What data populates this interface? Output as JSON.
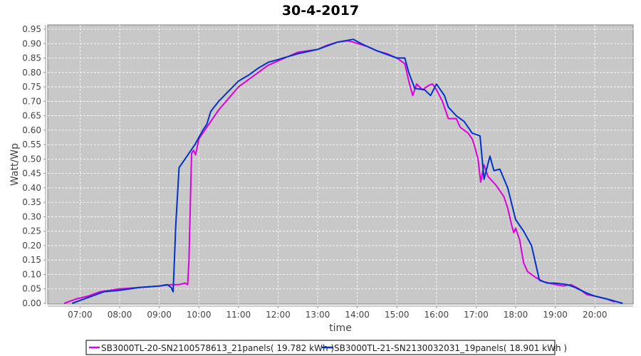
{
  "chart_data": {
    "type": "line",
    "title": "30-4-2017",
    "xlabel": "time",
    "ylabel": "Watt/Wp",
    "xlim": [
      "06:11",
      "20:58"
    ],
    "ylim": [
      0,
      0.96
    ],
    "grid": true,
    "legend_position": "bottom",
    "background": "#c8c8c8",
    "xticks": [
      "07:00",
      "08:00",
      "09:00",
      "10:00",
      "11:00",
      "12:00",
      "13:00",
      "14:00",
      "15:00",
      "16:00",
      "17:00",
      "18:00",
      "19:00",
      "20:00"
    ],
    "yticks": [
      "0.00",
      "0.05",
      "0.10",
      "0.15",
      "0.20",
      "0.25",
      "0.30",
      "0.35",
      "0.40",
      "0.45",
      "0.50",
      "0.55",
      "0.60",
      "0.65",
      "0.70",
      "0.75",
      "0.80",
      "0.85",
      "0.90",
      "0.95"
    ],
    "series": [
      {
        "name": "SB3000TL-20-SN2100578613_21panels( 19.782 kWh )",
        "color": "#dd00dd",
        "points": [
          [
            "06:36",
            0.0
          ],
          [
            "06:54",
            0.015
          ],
          [
            "07:12",
            0.025
          ],
          [
            "07:30",
            0.04
          ],
          [
            "08:00",
            0.05
          ],
          [
            "08:30",
            0.055
          ],
          [
            "09:00",
            0.06
          ],
          [
            "09:18",
            0.065
          ],
          [
            "09:30",
            0.065
          ],
          [
            "09:39",
            0.07
          ],
          [
            "09:43",
            0.065
          ],
          [
            "09:45",
            0.15
          ],
          [
            "09:49",
            0.52
          ],
          [
            "09:52",
            0.53
          ],
          [
            "09:55",
            0.515
          ],
          [
            "10:00",
            0.57
          ],
          [
            "10:15",
            0.62
          ],
          [
            "10:30",
            0.67
          ],
          [
            "10:45",
            0.71
          ],
          [
            "11:00",
            0.75
          ],
          [
            "11:15",
            0.775
          ],
          [
            "11:30",
            0.8
          ],
          [
            "11:45",
            0.825
          ],
          [
            "12:00",
            0.84
          ],
          [
            "12:15",
            0.855
          ],
          [
            "12:30",
            0.87
          ],
          [
            "12:45",
            0.875
          ],
          [
            "13:00",
            0.88
          ],
          [
            "13:15",
            0.895
          ],
          [
            "13:30",
            0.905
          ],
          [
            "13:45",
            0.91
          ],
          [
            "13:54",
            0.905
          ],
          [
            "14:15",
            0.89
          ],
          [
            "14:30",
            0.875
          ],
          [
            "14:45",
            0.865
          ],
          [
            "15:00",
            0.85
          ],
          [
            "15:12",
            0.83
          ],
          [
            "15:18",
            0.77
          ],
          [
            "15:24",
            0.72
          ],
          [
            "15:30",
            0.76
          ],
          [
            "15:39",
            0.74
          ],
          [
            "15:48",
            0.755
          ],
          [
            "15:54",
            0.76
          ],
          [
            "16:00",
            0.74
          ],
          [
            "16:09",
            0.7
          ],
          [
            "16:18",
            0.64
          ],
          [
            "16:30",
            0.64
          ],
          [
            "16:36",
            0.61
          ],
          [
            "16:48",
            0.59
          ],
          [
            "16:54",
            0.57
          ],
          [
            "16:57",
            0.55
          ],
          [
            "17:03",
            0.5
          ],
          [
            "17:07",
            0.42
          ],
          [
            "17:12",
            0.48
          ],
          [
            "17:18",
            0.44
          ],
          [
            "17:30",
            0.41
          ],
          [
            "17:42",
            0.37
          ],
          [
            "17:48",
            0.33
          ],
          [
            "17:54",
            0.27
          ],
          [
            "17:57",
            0.245
          ],
          [
            "18:00",
            0.26
          ],
          [
            "18:06",
            0.22
          ],
          [
            "18:12",
            0.14
          ],
          [
            "18:18",
            0.11
          ],
          [
            "18:30",
            0.09
          ],
          [
            "18:42",
            0.075
          ],
          [
            "19:00",
            0.065
          ],
          [
            "19:12",
            0.06
          ],
          [
            "19:24",
            0.065
          ],
          [
            "19:36",
            0.05
          ],
          [
            "19:48",
            0.03
          ],
          [
            "20:00",
            0.025
          ],
          [
            "20:18",
            0.015
          ],
          [
            "20:30",
            0.005
          ]
        ]
      },
      {
        "name": "SB3000TL-21-SN2130032031_19panels( 18.901 kWh )",
        "color": "#0033cc",
        "points": [
          [
            "06:48",
            0.0
          ],
          [
            "07:00",
            0.01
          ],
          [
            "07:18",
            0.025
          ],
          [
            "07:36",
            0.04
          ],
          [
            "08:00",
            0.045
          ],
          [
            "08:30",
            0.055
          ],
          [
            "09:00",
            0.06
          ],
          [
            "09:12",
            0.065
          ],
          [
            "09:18",
            0.055
          ],
          [
            "09:21",
            0.04
          ],
          [
            "09:25",
            0.27
          ],
          [
            "09:30",
            0.47
          ],
          [
            "09:36",
            0.49
          ],
          [
            "09:45",
            0.52
          ],
          [
            "09:54",
            0.55
          ],
          [
            "10:06",
            0.6
          ],
          [
            "10:12",
            0.62
          ],
          [
            "10:18",
            0.665
          ],
          [
            "10:30",
            0.7
          ],
          [
            "10:45",
            0.735
          ],
          [
            "11:00",
            0.77
          ],
          [
            "11:15",
            0.79
          ],
          [
            "11:30",
            0.815
          ],
          [
            "11:45",
            0.835
          ],
          [
            "12:00",
            0.845
          ],
          [
            "12:30",
            0.865
          ],
          [
            "13:00",
            0.88
          ],
          [
            "13:30",
            0.905
          ],
          [
            "13:54",
            0.915
          ],
          [
            "14:06",
            0.9
          ],
          [
            "14:30",
            0.875
          ],
          [
            "15:00",
            0.85
          ],
          [
            "15:12",
            0.85
          ],
          [
            "15:18",
            0.8
          ],
          [
            "15:27",
            0.745
          ],
          [
            "15:42",
            0.74
          ],
          [
            "15:51",
            0.72
          ],
          [
            "16:00",
            0.76
          ],
          [
            "16:12",
            0.72
          ],
          [
            "16:18",
            0.68
          ],
          [
            "16:30",
            0.65
          ],
          [
            "16:42",
            0.63
          ],
          [
            "16:54",
            0.59
          ],
          [
            "17:06",
            0.58
          ],
          [
            "17:12",
            0.43
          ],
          [
            "17:21",
            0.51
          ],
          [
            "17:27",
            0.46
          ],
          [
            "17:36",
            0.465
          ],
          [
            "17:48",
            0.4
          ],
          [
            "18:00",
            0.29
          ],
          [
            "18:12",
            0.25
          ],
          [
            "18:24",
            0.2
          ],
          [
            "18:36",
            0.08
          ],
          [
            "18:48",
            0.07
          ],
          [
            "19:00",
            0.07
          ],
          [
            "19:18",
            0.065
          ],
          [
            "19:30",
            0.055
          ],
          [
            "19:48",
            0.035
          ],
          [
            "20:00",
            0.025
          ],
          [
            "20:18",
            0.015
          ],
          [
            "20:42",
            0.0
          ]
        ]
      }
    ]
  }
}
